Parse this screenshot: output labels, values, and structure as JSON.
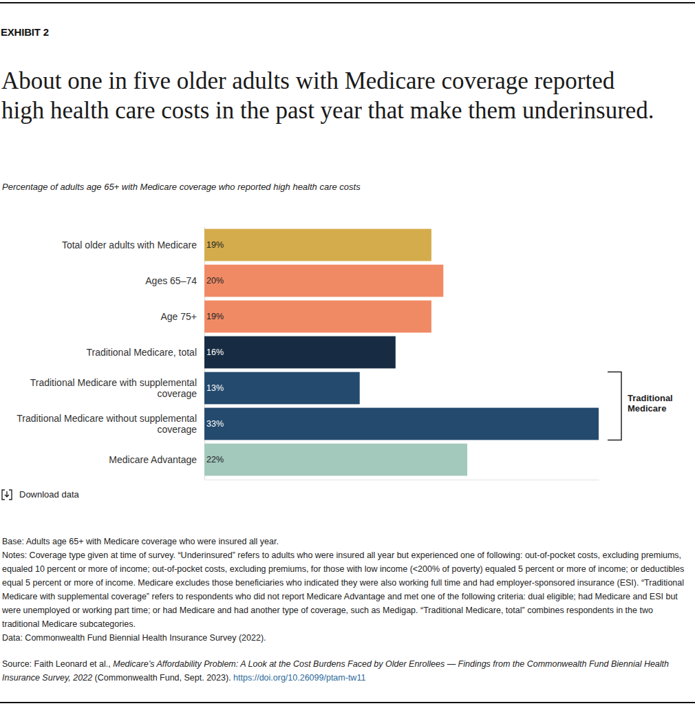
{
  "chart_data": {
    "type": "bar",
    "orientation": "horizontal",
    "title": "About one in five older adults with Medicare coverage reported high health care costs in the past year that make them underinsured.",
    "subtitle": "Percentage of adults age 65+ with Medicare coverage who reported high health care costs",
    "categories": [
      "Total older adults with Medicare",
      "Ages 65–74",
      "Age 75+",
      "Traditional Medicare, total",
      "Traditional Medicare with supplemental coverage",
      "Traditional Medicare without supplemental coverage",
      "Medicare Advantage"
    ],
    "values": [
      19,
      20,
      19,
      16,
      13,
      33,
      22
    ],
    "value_labels": [
      "19%",
      "20%",
      "19%",
      "16%",
      "13%",
      "33%",
      "22%"
    ],
    "colors": [
      "#d4ac4c",
      "#f08a65",
      "#f08a65",
      "#172c43",
      "#244a6e",
      "#244a6e",
      "#a3c8bc"
    ],
    "xlim": [
      0,
      33
    ],
    "xticks": [
      0
    ],
    "grid": true,
    "data_labels": true,
    "tick_labels": "y",
    "annotations": [
      {
        "text": "Traditional Medicare",
        "categories": [
          "Traditional Medicare with supplemental coverage",
          "Traditional Medicare without supplemental coverage"
        ]
      }
    ]
  },
  "page": {
    "exhibit": "EXHIBIT 2",
    "download": "Download data",
    "base": "Base: Adults age 65+ with Medicare coverage who were insured all year.",
    "notes": "Notes: Coverage type given at time of survey. “Underinsured” refers to adults who were insured all year but experienced one of following: out-of-pocket costs, excluding premiums, equaled 10 percent or more of income; out-of-pocket costs, excluding premiums, for those with low income (<200% of poverty) equaled 5 percent or more of income; or deductibles equal 5 percent or more of income. Medicare excludes those beneficiaries who indicated they were also working full time and had employer-sponsored insurance (ESI). “Traditional Medicare with supplemental coverage” refers to respondents who did not report Medicare Advantage and met one of the following criteria: dual eligible; had Medicare and ESI but were unemployed or working part time; or had Medicare and had another type of coverage, such as Medigap. “Traditional Medicare, total” combines respondents in the two traditional Medicare subcategories.",
    "data_source": "Data: Commonwealth Fund Biennial Health Insurance Survey (2022).",
    "source": {
      "prefix": "Source: Faith Leonard et al.,",
      "title": "Medicare’s Affordability Problem: A Look at the Cost Burdens Faced by Older Enrollees — Findings from the Commonwealth Fund Biennial Health Insurance Survey, 2022",
      "suffix": "(Commonwealth Fund, Sept. 2023).",
      "link": "https://doi.org/10.26099/ptam-tw11"
    }
  }
}
